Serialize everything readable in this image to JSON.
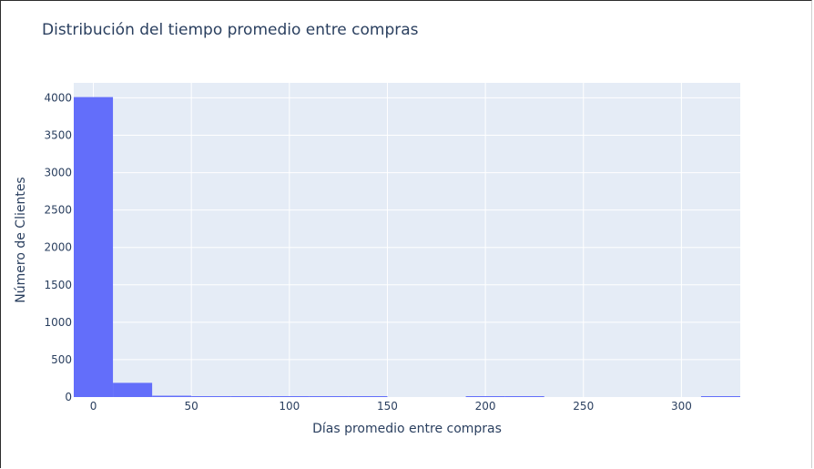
{
  "chart_data": {
    "type": "bar",
    "title": "Distribución del tiempo promedio entre compras",
    "xlabel": "Días promedio entre compras",
    "ylabel": "Número de Clientes",
    "xlim": [
      -10,
      330
    ],
    "ylim": [
      0,
      4200
    ],
    "xticks": [
      0,
      50,
      100,
      150,
      200,
      250,
      300
    ],
    "yticks": [
      0,
      500,
      1000,
      1500,
      2000,
      2500,
      3000,
      3500,
      4000
    ],
    "bin_width": 20,
    "bins": [
      {
        "x0": -10,
        "x1": 10,
        "count": 4010
      },
      {
        "x0": 10,
        "x1": 30,
        "count": 190
      },
      {
        "x0": 30,
        "x1": 50,
        "count": 18
      },
      {
        "x0": 50,
        "x1": 70,
        "count": 12
      },
      {
        "x0": 70,
        "x1": 90,
        "count": 6
      },
      {
        "x0": 90,
        "x1": 110,
        "count": 5
      },
      {
        "x0": 110,
        "x1": 130,
        "count": 4
      },
      {
        "x0": 130,
        "x1": 150,
        "count": 3
      },
      {
        "x0": 150,
        "x1": 170,
        "count": 0
      },
      {
        "x0": 170,
        "x1": 190,
        "count": 0
      },
      {
        "x0": 190,
        "x1": 210,
        "count": 1
      },
      {
        "x0": 210,
        "x1": 230,
        "count": 2
      },
      {
        "x0": 230,
        "x1": 250,
        "count": 0
      },
      {
        "x0": 250,
        "x1": 270,
        "count": 0
      },
      {
        "x0": 270,
        "x1": 290,
        "count": 0
      },
      {
        "x0": 290,
        "x1": 310,
        "count": 0
      },
      {
        "x0": 310,
        "x1": 330,
        "count": 2
      }
    ],
    "grid": true,
    "colors": {
      "bar": "#636efa",
      "plot_bg": "#e5ecf6",
      "grid": "#ffffff",
      "text": "#2a3f5f"
    }
  }
}
